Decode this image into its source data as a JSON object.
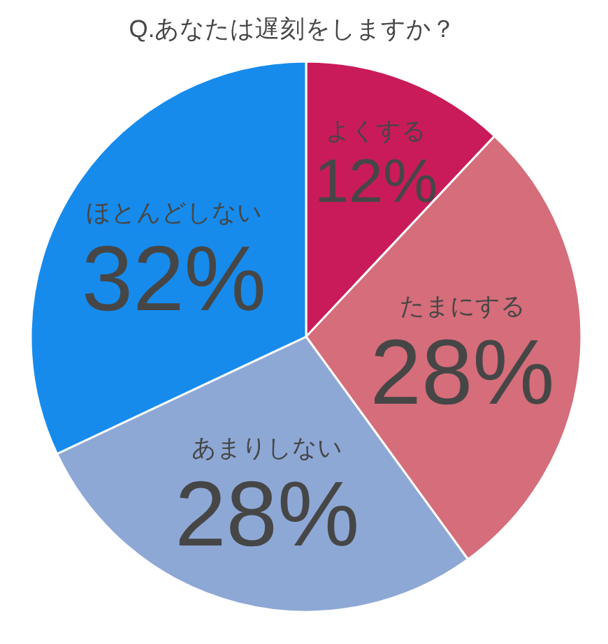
{
  "chart_data": {
    "type": "pie",
    "title": "Q.あなたは遅刻をしますか？",
    "categories": [
      "よくする",
      "たまにする",
      "あまりしない",
      "ほとんどしない"
    ],
    "values": [
      12,
      28,
      28,
      32
    ],
    "colors": [
      "#c91b5a",
      "#d56d7a",
      "#8ea8d6",
      "#168bec"
    ],
    "value_labels": [
      "12%",
      "28%",
      "28%",
      "32%"
    ],
    "legend": false
  }
}
